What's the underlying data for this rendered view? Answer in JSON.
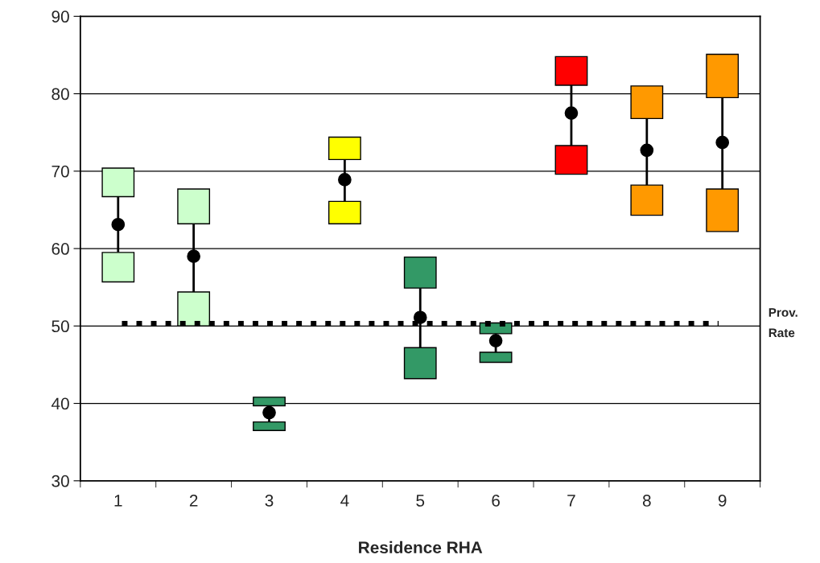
{
  "chart_data": {
    "type": "bar",
    "xlabel": "Residence RHA",
    "categories": [
      "1",
      "2",
      "3",
      "4",
      "5",
      "6",
      "7",
      "8",
      "9"
    ],
    "series": [
      {
        "base": [
          55.7,
          50.0,
          36.5,
          63.2,
          43.2,
          45.3,
          69.6,
          64.3,
          62.2
        ],
        "values": [
          3.8,
          4.4,
          1.1,
          2.9,
          4.0,
          1.3,
          3.7,
          3.9,
          5.5
        ],
        "colors": [
          "#ccffcc",
          "#ccffcc",
          "#339966",
          "#ffff00",
          "#339966",
          "#339966",
          "#ff0000",
          "#ff9900",
          "#ff9900"
        ]
      },
      {
        "base": [
          66.7,
          63.2,
          39.7,
          71.5,
          54.9,
          49.0,
          81.1,
          76.8,
          79.5
        ],
        "values": [
          3.7,
          4.5,
          1.1,
          2.9,
          4.0,
          1.4,
          3.7,
          4.2,
          5.6
        ],
        "colors": [
          "#ccffcc",
          "#ccffcc",
          "#339966",
          "#ffff00",
          "#339966",
          "#339966",
          "#ff0000",
          "#ff9900",
          "#ff9900"
        ]
      },
      {
        "type": "scatter",
        "color": "#000000",
        "marker": "circle",
        "values": [
          63.1,
          59.0,
          38.8,
          68.9,
          51.1,
          48.1,
          77.5,
          72.7,
          73.7
        ],
        "errors": [
          [
            59.5,
            66.7
          ],
          [
            54.4,
            63.2
          ],
          [
            37.6,
            39.7
          ],
          [
            66.1,
            71.5
          ],
          [
            47.2,
            54.9
          ],
          [
            46.6,
            49.0
          ],
          [
            73.3,
            81.1
          ],
          [
            68.2,
            76.8
          ],
          [
            67.7,
            79.5
          ]
        ]
      }
    ],
    "ylim": [
      30,
      90
    ],
    "yticks": [
      30,
      40,
      50,
      60,
      70,
      80,
      90
    ],
    "grid": "y",
    "legend": false,
    "ref_lines": [
      {
        "axis": "y",
        "value": 50.3,
        "label": "Prov.\nRate",
        "color": "#000000",
        "line_style": "dotted"
      }
    ]
  }
}
